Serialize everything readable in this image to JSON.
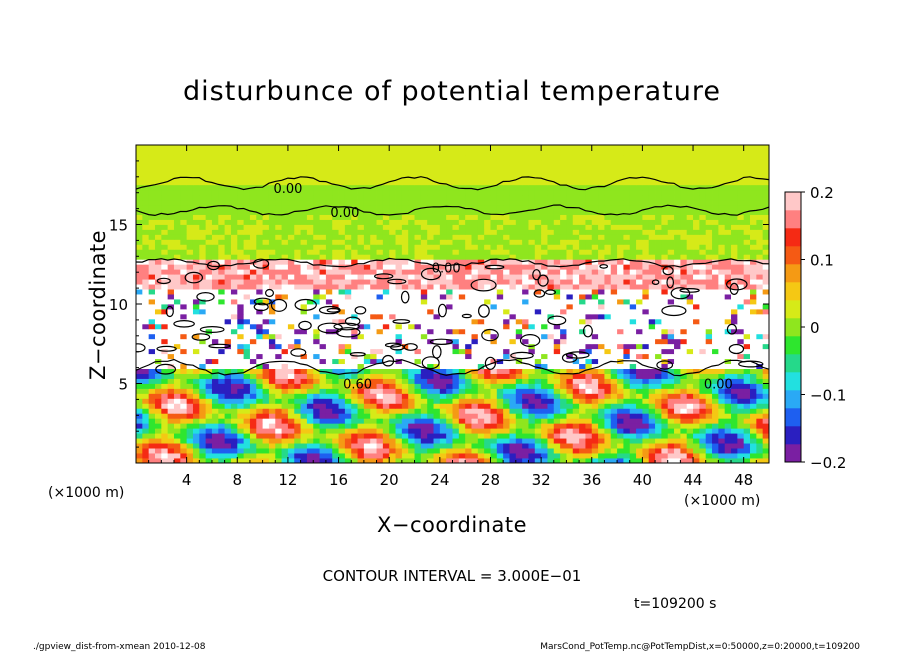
{
  "figure": {
    "title": "disturbunce of potential temperature",
    "xlabel": "X−coordinate",
    "ylabel": "Z−coordinate",
    "x_unit": "(×1000 m)",
    "y_unit": "(×1000 m)",
    "contour_interval": "CONTOUR INTERVAL = 3.000E−01",
    "time_label": "t=109200 s",
    "footer_left": "./gpview_dist-from-xmean  2010-12-08",
    "footer_right": "MarsCond_PotTemp.nc@PotTempDist,x=0:50000,z=0:20000,t=109200"
  },
  "chart_data": {
    "type": "heatmap",
    "title": "disturbunce of potential temperature",
    "xlabel": "X−coordinate",
    "ylabel": "Z−coordinate",
    "xlim": [
      0,
      50
    ],
    "ylim": [
      0,
      20
    ],
    "x_ticks": [
      4,
      8,
      12,
      16,
      20,
      24,
      28,
      32,
      36,
      40,
      44,
      48
    ],
    "y_ticks": [
      5,
      10,
      15
    ],
    "colorbar": {
      "range": [
        -0.2,
        0.2
      ],
      "ticks": [
        0.2,
        0.1,
        0,
        -0.1,
        -0.2
      ],
      "tick_labels": [
        "0.2",
        "0.1",
        "0",
        "−0.1",
        "−0.2"
      ],
      "colors": [
        "#7a1fa2",
        "#2a1fc0",
        "#1e5ff0",
        "#2aa9f5",
        "#22e0e0",
        "#25d98a",
        "#2ee62e",
        "#8fe61e",
        "#d6ea18",
        "#f5c814",
        "#f59a14",
        "#f55a14",
        "#f52a14",
        "#ff8080",
        "#ffc8c8"
      ]
    },
    "contour_labels": [
      {
        "x": 12,
        "z": 17.3,
        "text": "0.00"
      },
      {
        "x": 16.5,
        "z": 15.8,
        "text": "0.00"
      },
      {
        "x": 24.5,
        "z": 12.3,
        "text": "0.00"
      },
      {
        "x": 17.5,
        "z": 5.0,
        "text": "0.60"
      },
      {
        "x": 46,
        "z": 5.0,
        "text": "0.00"
      }
    ],
    "regions": [
      {
        "z_from": 17.5,
        "z_to": 20,
        "value": 0.02
      },
      {
        "z_from": 15.5,
        "z_to": 17.5,
        "value": 0.0
      },
      {
        "z_from": 12.8,
        "z_to": 15.5,
        "value": 0.0
      },
      {
        "z_from": 10.8,
        "z_to": 12.8,
        "value": 0.18
      },
      {
        "z_from": 6.0,
        "z_to": 10.8,
        "value": 0.22
      },
      {
        "z_from": 0,
        "z_to": 6.0,
        "value": 0.0
      }
    ]
  }
}
